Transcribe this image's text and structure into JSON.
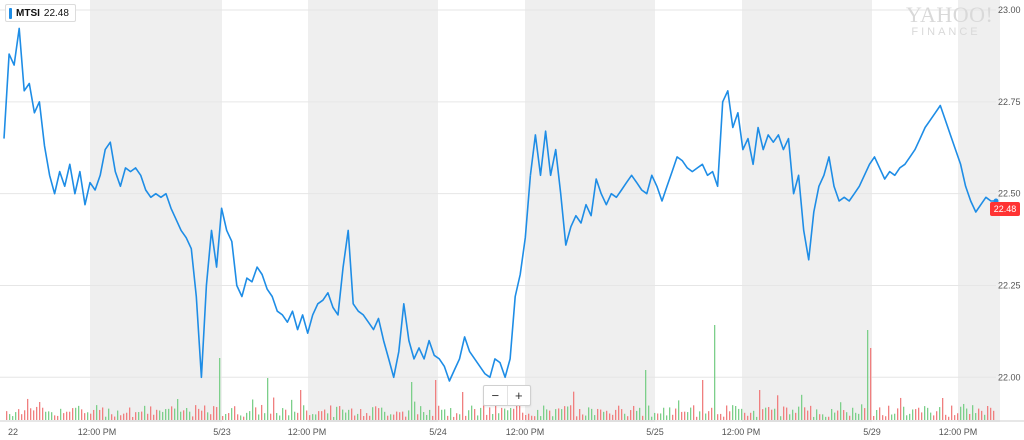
{
  "legend": {
    "symbol": "MTSI",
    "last_price": "22.48"
  },
  "watermark": {
    "line1": "YAHOO!",
    "line2": "FINANCE"
  },
  "zoom": {
    "minus": "−",
    "plus": "+"
  },
  "price_tag": "22.48",
  "colors": {
    "line": "#1e8de6",
    "shade": "#efefef",
    "grid": "#e6e6e6",
    "vol_up": "#7ccf8a",
    "vol_down": "#f07f7f",
    "price_tag": "#ff3333"
  },
  "chart_data": {
    "type": "line",
    "series": [
      {
        "name": "MTSI",
        "x": [
          0,
          0.5,
          1,
          1.5,
          2,
          2.5,
          3,
          3.5,
          4,
          4.5,
          5,
          5.5,
          6,
          6.5,
          7,
          7.5,
          8,
          8.5,
          9,
          9.5,
          10,
          10.5,
          11,
          11.5,
          12,
          12.5,
          13,
          13.5,
          14,
          14.5,
          15,
          15.5,
          16,
          16.5,
          17,
          17.5,
          18,
          18.5,
          19,
          19.5,
          20,
          20.5,
          21,
          21.5,
          22,
          22.5,
          23,
          23.5,
          24,
          24.5,
          25,
          25.5,
          26,
          26.5,
          27,
          27.5,
          28,
          28.5,
          29,
          29.5,
          30,
          30.5,
          31,
          31.5,
          32,
          32.5,
          33,
          33.5,
          34,
          34.5,
          35,
          35.5,
          36,
          36.5,
          37,
          37.5,
          38,
          38.5,
          39,
          39.5,
          40,
          40.5,
          41,
          41.5,
          42,
          42.5,
          43,
          43.5,
          44,
          44.5,
          45,
          45.5,
          46,
          46.5,
          47,
          47.5,
          48,
          48.5,
          49,
          49.5,
          50,
          50.5,
          51,
          51.5,
          52
        ],
        "y": [
          22.65,
          22.88,
          22.85,
          22.95,
          22.78,
          22.8,
          22.72,
          22.75,
          22.63,
          22.55,
          22.5,
          22.56,
          22.52,
          22.58,
          22.5,
          22.56,
          22.47,
          22.53,
          22.51,
          22.55,
          22.62,
          22.64,
          22.56,
          22.52,
          22.57,
          22.56,
          22.57,
          22.55,
          22.51,
          22.49,
          22.5,
          22.49,
          22.5,
          22.46,
          22.43,
          22.4,
          22.38,
          22.35,
          22.22,
          22.0,
          22.25,
          22.4,
          22.3,
          22.46,
          22.4,
          22.37,
          22.25,
          22.22,
          22.27,
          22.26,
          22.3,
          22.28,
          22.24,
          22.22,
          22.18,
          22.17,
          22.15,
          22.18,
          22.13,
          22.17,
          22.12,
          22.17,
          22.2,
          22.21,
          22.23,
          22.19,
          22.17,
          22.3,
          22.4,
          22.2,
          22.18,
          22.17,
          22.15,
          22.13,
          22.16,
          22.1,
          22.05,
          22.0,
          22.07,
          22.2,
          22.1,
          22.05,
          22.08,
          22.05,
          22.1,
          22.06,
          22.05,
          22.03,
          21.99,
          22.02,
          22.05,
          22.11,
          22.07,
          22.05,
          22.03,
          22.01,
          22.0,
          22.05,
          22.04,
          22.0,
          22.05,
          22.22,
          22.28,
          22.38,
          22.55
        ]
      },
      {
        "name": "",
        "x": [
          52,
          52.5,
          53,
          53.5,
          54,
          54.5,
          55,
          55.5,
          56,
          56.5,
          57,
          57.5,
          58,
          58.5,
          59,
          59.5,
          60,
          60.5,
          61,
          61.5,
          62,
          62.5,
          63,
          63.5,
          64,
          64.5,
          65,
          65.5,
          66,
          66.5,
          67,
          67.5,
          68,
          68.5,
          69,
          69.5,
          70,
          70.5,
          71,
          71.5,
          72,
          72.5,
          73,
          73.5,
          74,
          74.5,
          75,
          75.5,
          76,
          76.5,
          77,
          77.5,
          78,
          78.5,
          79,
          79.5,
          80,
          80.5,
          81,
          81.5,
          82,
          82.5,
          83,
          83.5,
          84,
          84.5,
          85,
          85.5,
          86,
          86.5,
          87,
          87.5,
          88,
          88.5,
          89,
          89.5,
          90,
          90.5,
          91,
          91.5,
          92,
          92.5,
          93,
          93.5,
          94,
          94.5,
          95,
          95.5,
          96,
          96.5,
          97,
          97.5,
          98
        ],
        "y": [
          22.55,
          22.66,
          22.55,
          22.67,
          22.55,
          22.62,
          22.5,
          22.36,
          22.41,
          22.44,
          22.42,
          22.47,
          22.44,
          22.54,
          22.5,
          22.47,
          22.5,
          22.49,
          22.51,
          22.53,
          22.55,
          22.53,
          22.51,
          22.5,
          22.55,
          22.52,
          22.48,
          22.52,
          22.56,
          22.6,
          22.59,
          22.57,
          22.56,
          22.57,
          22.58,
          22.55,
          22.56,
          22.52,
          22.75,
          22.78,
          22.68,
          22.72,
          22.62,
          22.65,
          22.58,
          22.68,
          22.62,
          22.66,
          22.64,
          22.66,
          22.62,
          22.65,
          22.5,
          22.55,
          22.4,
          22.32,
          22.45,
          22.52,
          22.55,
          22.6,
          22.52,
          22.48,
          22.49,
          22.48,
          22.5,
          22.52,
          22.55,
          22.58,
          22.6,
          22.57,
          22.54,
          22.56,
          22.55,
          22.57,
          22.58,
          22.6,
          22.62,
          22.65,
          22.68,
          22.7,
          22.72,
          22.74,
          22.7,
          22.66,
          22.62,
          22.58,
          22.52,
          22.48,
          22.45,
          22.47,
          22.49,
          22.48,
          22.48
        ]
      }
    ],
    "ylim": [
      21.96,
      23.0
    ],
    "yticks": [
      "23.00",
      "22.75",
      "22.50",
      "22.25",
      "22.00"
    ],
    "xticks": [
      "22",
      "12:00 PM",
      "5/23",
      "12:00 PM",
      "5/24",
      "12:00 PM",
      "5/25",
      "12:00 PM",
      "5/29",
      "12:00 PM"
    ],
    "grid": true,
    "last_value": 22.48
  }
}
